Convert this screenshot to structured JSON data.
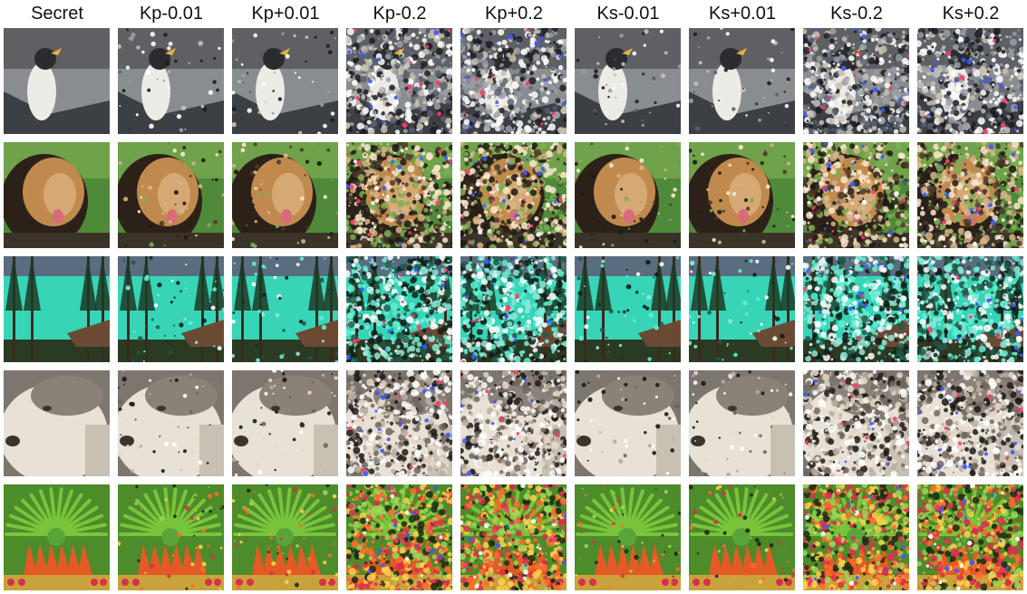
{
  "columns": [
    {
      "label": "Secret",
      "type": "clean"
    },
    {
      "label": "Kp-0.01",
      "type": "light"
    },
    {
      "label": "Kp+0.01",
      "type": "light"
    },
    {
      "label": "Kp-0.2",
      "type": "heavy"
    },
    {
      "label": "Kp+0.2",
      "type": "heavy"
    },
    {
      "label": "Ks-0.01",
      "type": "light"
    },
    {
      "label": "Ks+0.01",
      "type": "light"
    },
    {
      "label": "Ks-0.2",
      "type": "heavy"
    },
    {
      "label": "Ks+0.2",
      "type": "heavy"
    }
  ],
  "rows": [
    {
      "subject": "penguin",
      "palette": {
        "bg": "#8a8d90",
        "top": "#5e6064",
        "bottom": "#3c3f44",
        "main": "#ecebe6",
        "accent": "#2a2c30",
        "noise": [
          "#ffffff",
          "#1c1c22",
          "#9aa0a8",
          "#5a6070",
          "#c9c2b4"
        ]
      }
    },
    {
      "subject": "lion",
      "palette": {
        "bg": "#4f8a3a",
        "top": "#6fa24a",
        "bottom": "#3a3428",
        "main": "#c08a4e",
        "accent": "#2c2118",
        "noise": [
          "#d9b487",
          "#1f1a14",
          "#7dae55",
          "#fbe7cf",
          "#4b3a2a"
        ]
      }
    },
    {
      "subject": "lake",
      "palette": {
        "bg": "#23b09a",
        "top": "#5a6d80",
        "bottom": "#2b3a22",
        "main": "#38d4b8",
        "accent": "#3b2a1c",
        "noise": [
          "#5ef0d2",
          "#0f1e18",
          "#8fe8d8",
          "#ffffff",
          "#1f5a48"
        ]
      }
    },
    {
      "subject": "wolf",
      "palette": {
        "bg": "#9c9690",
        "top": "#7d766f",
        "bottom": "#c8c0b3",
        "main": "#e8e1d6",
        "accent": "#3b342d",
        "noise": [
          "#ffffff",
          "#1c1a18",
          "#b7ada0",
          "#6e655c",
          "#e4d8c8"
        ]
      }
    },
    {
      "subject": "flower",
      "palette": {
        "bg": "#6fae3b",
        "top": "#4d8b2b",
        "bottom": "#c9a23b",
        "main": "#79c43a",
        "accent": "#e45a26",
        "noise": [
          "#ff6b2e",
          "#1c2a12",
          "#9ad65a",
          "#ffd24a",
          "#d8304a"
        ]
      }
    }
  ]
}
